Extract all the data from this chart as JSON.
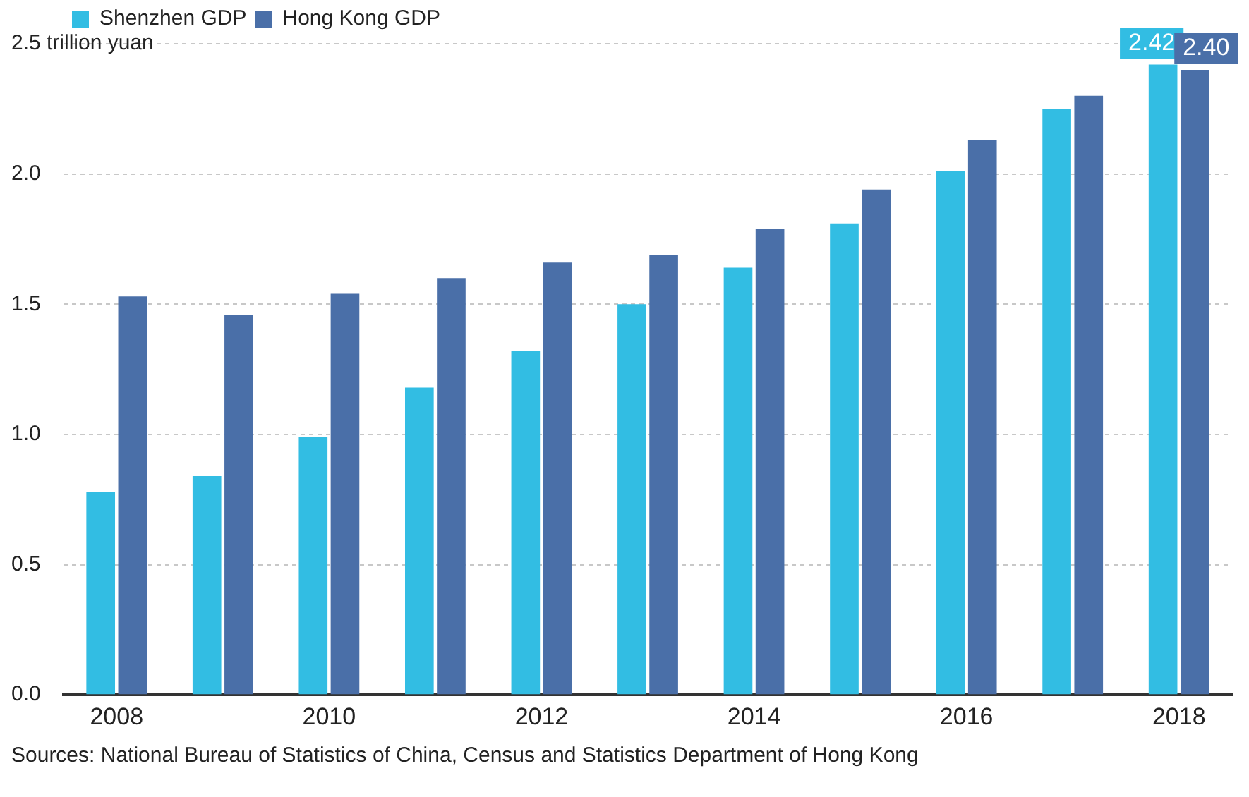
{
  "chart_data": {
    "type": "bar",
    "categories": [
      "2008",
      null,
      "2010",
      null,
      "2012",
      null,
      "2014",
      null,
      "2016",
      null,
      "2018"
    ],
    "series": [
      {
        "name": "Shenzhen GDP",
        "color": "#32bde3",
        "values": [
          0.78,
          0.84,
          0.99,
          1.18,
          1.32,
          1.5,
          1.64,
          1.81,
          2.01,
          2.25,
          2.42
        ],
        "value_labels": [
          null,
          null,
          null,
          null,
          null,
          null,
          null,
          null,
          null,
          null,
          "2.42"
        ]
      },
      {
        "name": "Hong Kong GDP",
        "color": "#4a6fa8",
        "values": [
          1.53,
          1.46,
          1.54,
          1.6,
          1.66,
          1.69,
          1.79,
          1.94,
          2.13,
          2.3,
          2.4
        ],
        "value_labels": [
          null,
          null,
          null,
          null,
          null,
          null,
          null,
          null,
          null,
          null,
          "2.40"
        ]
      }
    ],
    "ylim": [
      0,
      2.5
    ],
    "yticks": [
      {
        "value": 0,
        "label": "0.0"
      },
      {
        "value": 0.5,
        "label": "0.5"
      },
      {
        "value": 1,
        "label": "1.0"
      },
      {
        "value": 1.5,
        "label": "1.5"
      },
      {
        "value": 2,
        "label": "2.0"
      },
      {
        "value": 2.5,
        "label": "2.5 trillion yuan"
      }
    ],
    "grid": "y",
    "legend": "top left",
    "annotations": [
      "Sources: National Bureau of Statistics of China, Census and Statistics Department of Hong Kong"
    ]
  }
}
